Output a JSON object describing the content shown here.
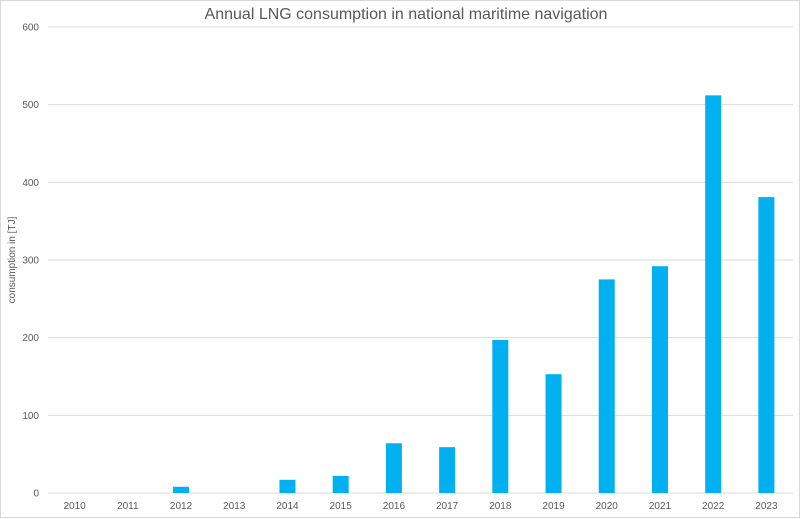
{
  "chart_data": {
    "type": "bar",
    "title": "Annual LNG consumption in national maritime navigation",
    "xlabel": "",
    "ylabel": "consumption in [TJ]",
    "categories": [
      "2010",
      "2011",
      "2012",
      "2013",
      "2014",
      "2015",
      "2016",
      "2017",
      "2018",
      "2019",
      "2020",
      "2021",
      "2022",
      "2023"
    ],
    "values": [
      0,
      0,
      8,
      0,
      17,
      22,
      64,
      59,
      197,
      153,
      275,
      292,
      512,
      381
    ],
    "ylim": [
      0,
      600
    ],
    "yticks": [
      0,
      100,
      200,
      300,
      400,
      500,
      600
    ],
    "grid": true,
    "legend": "none",
    "colors": {
      "bar": "#00B0F0",
      "grid": "#D9D9D9",
      "text": "#595959"
    }
  }
}
